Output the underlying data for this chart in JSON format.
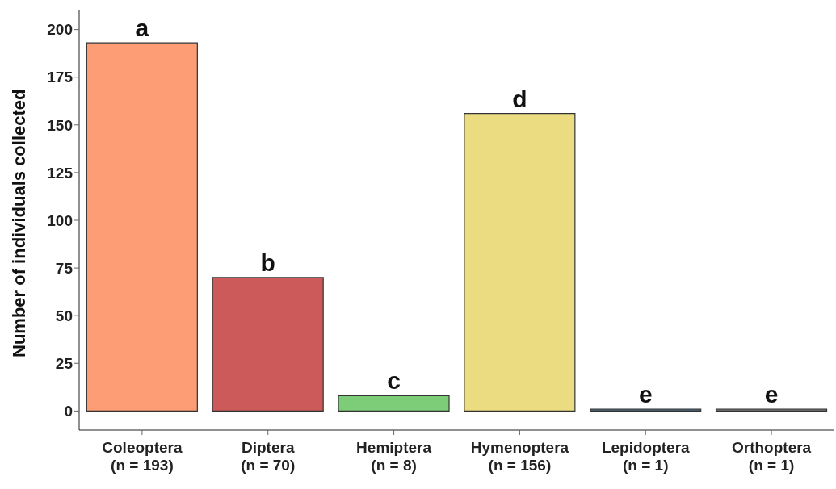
{
  "chart_data": {
    "type": "bar",
    "ylabel": "Number of individuals collected",
    "categories": [
      "Coleoptera\n(n = 193)",
      "Diptera\n(n = 70)",
      "Hemiptera\n(n = 8)",
      "Hymenoptera\n(n = 156)",
      "Lepidoptera\n(n = 1)",
      "Orthoptera\n(n = 1)"
    ],
    "values": [
      193,
      70,
      8,
      156,
      1,
      1
    ],
    "colors": [
      "#fc9d76",
      "#cd5a5a",
      "#7dcc78",
      "#ebdc82",
      "#4f6a7d",
      "#777777"
    ],
    "ylim": [
      -10,
      210
    ],
    "yticks": [
      0,
      25,
      50,
      75,
      100,
      125,
      150,
      175,
      200
    ],
    "grid": false,
    "legend": false,
    "annotations": [
      {
        "text": "a",
        "x": "Coleoptera\n(n = 193)",
        "y": 193
      },
      {
        "text": "b",
        "x": "Diptera\n(n = 70)",
        "y": 70
      },
      {
        "text": "c",
        "x": "Hemiptera\n(n = 8)",
        "y": 8
      },
      {
        "text": "d",
        "x": "Hymenoptera\n(n = 156)",
        "y": 156
      },
      {
        "text": "e",
        "x": "Lepidoptera\n(n = 1)",
        "y": 1
      },
      {
        "text": "e",
        "x": "Orthoptera\n(n = 1)",
        "y": 1
      }
    ]
  }
}
